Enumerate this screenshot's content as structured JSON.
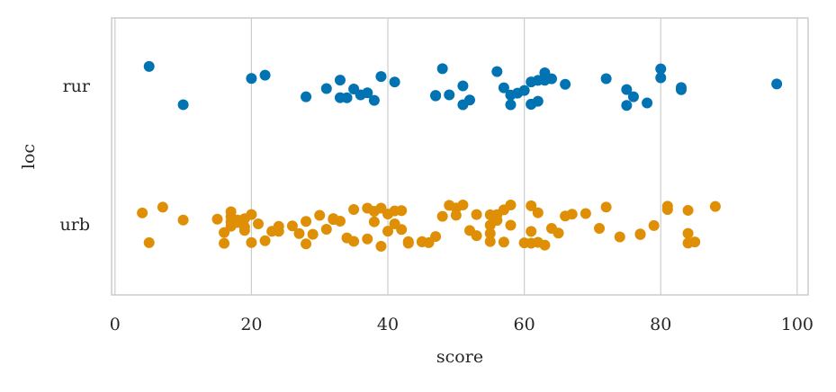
{
  "chart_data": {
    "type": "strip",
    "xlabel": "score",
    "ylabel": "loc",
    "categories": [
      "rur",
      "urb"
    ],
    "colors": [
      "#0173b2",
      "#de8f05"
    ],
    "values": [
      [
        5,
        10,
        20,
        22,
        28,
        31,
        33,
        33,
        34,
        35,
        36,
        37,
        38,
        39,
        41,
        47,
        47,
        48,
        49,
        51,
        51,
        52,
        56,
        57,
        58,
        58,
        59,
        60,
        61,
        61,
        61,
        62,
        62,
        63,
        63,
        64,
        66,
        72,
        75,
        75,
        76,
        78,
        80,
        80,
        83,
        83,
        97
      ],
      [
        4,
        5,
        7,
        10,
        15,
        16,
        16,
        17,
        17,
        17,
        17,
        18,
        18,
        19,
        19,
        19,
        20,
        20,
        21,
        22,
        23,
        24,
        24,
        26,
        27,
        28,
        28,
        29,
        30,
        31,
        32,
        32,
        33,
        34,
        35,
        35,
        37,
        37,
        38,
        38,
        39,
        39,
        40,
        40,
        41,
        41,
        42,
        42,
        43,
        43,
        45,
        45,
        46,
        47,
        48,
        49,
        50,
        50,
        51,
        52,
        53,
        53,
        55,
        55,
        55,
        55,
        56,
        56,
        57,
        57,
        58,
        58,
        60,
        61,
        61,
        61,
        62,
        62,
        63,
        64,
        65,
        66,
        67,
        69,
        71,
        72,
        74,
        77,
        77,
        79,
        81,
        81,
        84,
        84,
        84,
        85,
        88
      ]
    ],
    "xlim": [
      -0.5,
      101.6
    ],
    "xticks": [
      0,
      20,
      40,
      60,
      80,
      100
    ],
    "grid": true
  }
}
